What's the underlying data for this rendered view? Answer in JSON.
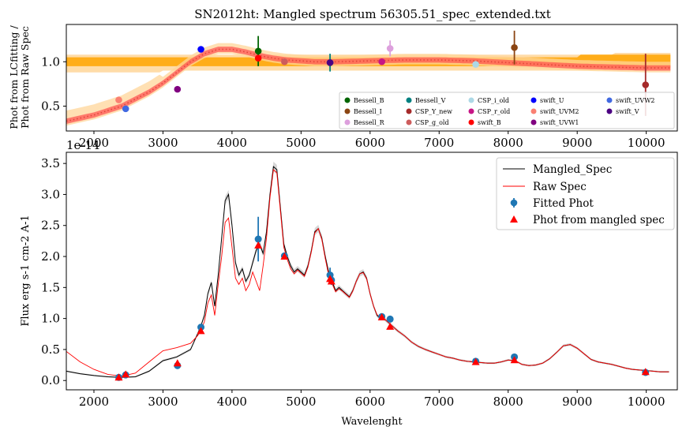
{
  "figure_title": "SN2012ht: Mangled spectrum 56305.51_spec_extended.txt",
  "chart_data": [
    {
      "type": "scatter",
      "panel": "top",
      "ylabel_line1": "Phot from LCfitting /",
      "ylabel_line2": "Phot from Raw Spec",
      "xlim": [
        1600,
        10450
      ],
      "ylim": [
        0.22,
        1.42
      ],
      "xticks": [
        2000,
        3000,
        4000,
        5000,
        6000,
        7000,
        8000,
        9000,
        10000
      ],
      "yticks": [
        0.5,
        1.0
      ],
      "offset_text": "1e-14",
      "grid": false,
      "legend_position": "lower-right",
      "legend_columns": 5,
      "colors": {
        "band_outer": "#ffd699",
        "band_inner": "#ffa500",
        "band_red": "#ff4d4d",
        "ratio_line": "#e0443a"
      },
      "ratio_curve": {
        "x": [
          1600,
          2000,
          2400,
          2800,
          3000,
          3200,
          3400,
          3600,
          3800,
          4000,
          4200,
          4400,
          4600,
          4800,
          5000,
          5200,
          5500,
          6000,
          6500,
          7000,
          7500,
          8000,
          8500,
          9000,
          9500,
          10000,
          10350
        ],
        "y": [
          0.33,
          0.4,
          0.5,
          0.66,
          0.76,
          0.88,
          1.0,
          1.09,
          1.14,
          1.14,
          1.11,
          1.07,
          1.04,
          1.02,
          1.01,
          1.0,
          1.0,
          1.01,
          1.02,
          1.02,
          1.01,
          0.99,
          0.97,
          0.95,
          0.94,
          0.93,
          0.93
        ]
      },
      "points": [
        {
          "name": "Bessell_B",
          "color": "#006400",
          "x": 4380,
          "y": 1.12,
          "err": 0.17
        },
        {
          "name": "Bessell_I",
          "color": "#8b4513",
          "x": 8090,
          "y": 1.16,
          "err": 0.19
        },
        {
          "name": "Bessell_R",
          "color": "#dda0dd",
          "x": 6290,
          "y": 1.15,
          "err": 0.09
        },
        {
          "name": "Bessell_V",
          "color": "#008080",
          "x": 5420,
          "y": 0.99,
          "err": 0.1
        },
        {
          "name": "CSP_Y_new",
          "color": "#a52a2a",
          "x": 9990,
          "y": 0.74,
          "err": 0.35
        },
        {
          "name": "CSP_g_old",
          "color": "#cd5c5c",
          "x": 4760,
          "y": 1.0,
          "err": 0.0
        },
        {
          "name": "CSP_i_old",
          "color": "#add8e6",
          "x": 7530,
          "y": 0.97,
          "err": 0.0
        },
        {
          "name": "CSP_r_old",
          "color": "#c71585",
          "x": 6170,
          "y": 1.0,
          "err": 0.0
        },
        {
          "name": "swift_B",
          "color": "#ff0000",
          "x": 4380,
          "y": 1.04,
          "err": 0.0
        },
        {
          "name": "swift_U",
          "color": "#0000ff",
          "x": 3550,
          "y": 1.14,
          "err": 0.0
        },
        {
          "name": "swift_UVM2",
          "color": "#fa8072",
          "x": 2360,
          "y": 0.57,
          "err": 0.0
        },
        {
          "name": "swift_UVW1",
          "color": "#800080",
          "x": 3210,
          "y": 0.69,
          "err": 0.0
        },
        {
          "name": "swift_UVW2",
          "color": "#4169e1",
          "x": 2460,
          "y": 0.47,
          "err": 0.0
        },
        {
          "name": "swift_V",
          "color": "#4b0082",
          "x": 5420,
          "y": 0.99,
          "err": 0.0
        }
      ]
    },
    {
      "type": "line",
      "panel": "bottom",
      "xlabel": "Wavelenght",
      "ylabel": "Flux erg s-1 cm-2 A-1",
      "xlim": [
        1600,
        10450
      ],
      "ylim": [
        -0.15,
        3.68
      ],
      "xticks": [
        2000,
        3000,
        4000,
        5000,
        6000,
        7000,
        8000,
        9000,
        10000
      ],
      "yticks": [
        0.0,
        0.5,
        1.0,
        1.5,
        2.0,
        2.5,
        3.0,
        3.5
      ],
      "grid": false,
      "legend_position": "top-right",
      "legend": [
        "Mangled_Spec",
        "Raw Spec",
        "Fitted Phot",
        "Phot from mangled spec"
      ],
      "series": [
        {
          "name": "Mangled_Spec",
          "color": "#000000",
          "x": [
            1600,
            1800,
            2000,
            2200,
            2400,
            2600,
            2800,
            3000,
            3200,
            3400,
            3500,
            3550,
            3600,
            3650,
            3700,
            3750,
            3800,
            3850,
            3900,
            3950,
            4000,
            4050,
            4100,
            4150,
            4200,
            4250,
            4300,
            4350,
            4400,
            4450,
            4500,
            4550,
            4600,
            4650,
            4700,
            4750,
            4800,
            4850,
            4900,
            4950,
            5000,
            5050,
            5100,
            5150,
            5200,
            5250,
            5300,
            5350,
            5400,
            5450,
            5500,
            5550,
            5600,
            5650,
            5700,
            5750,
            5800,
            5850,
            5900,
            5950,
            6000,
            6050,
            6100,
            6150,
            6200,
            6250,
            6300,
            6350,
            6400,
            6500,
            6600,
            6700,
            6800,
            6900,
            7000,
            7100,
            7200,
            7300,
            7400,
            7500,
            7600,
            7700,
            7800,
            7900,
            8000,
            8100,
            8200,
            8300,
            8400,
            8500,
            8600,
            8700,
            8800,
            8900,
            9000,
            9100,
            9200,
            9300,
            9400,
            9500,
            9600,
            9700,
            9800,
            9900,
            10000,
            10100,
            10200,
            10330
          ],
          "y": [
            0.15,
            0.11,
            0.08,
            0.06,
            0.05,
            0.06,
            0.15,
            0.32,
            0.38,
            0.5,
            0.75,
            0.88,
            1.05,
            1.4,
            1.58,
            1.2,
            1.7,
            2.3,
            2.9,
            3.0,
            2.5,
            1.9,
            1.7,
            1.8,
            1.6,
            1.7,
            1.9,
            2.1,
            2.2,
            2.05,
            2.4,
            3.0,
            3.45,
            3.4,
            2.8,
            2.2,
            2.0,
            1.85,
            1.75,
            1.8,
            1.75,
            1.7,
            1.85,
            2.1,
            2.4,
            2.45,
            2.3,
            2.0,
            1.75,
            1.6,
            1.45,
            1.5,
            1.45,
            1.4,
            1.35,
            1.45,
            1.6,
            1.72,
            1.75,
            1.65,
            1.4,
            1.2,
            1.05,
            1.0,
            1.0,
            0.95,
            0.9,
            0.85,
            0.8,
            0.72,
            0.62,
            0.55,
            0.5,
            0.46,
            0.42,
            0.38,
            0.36,
            0.33,
            0.31,
            0.3,
            0.29,
            0.28,
            0.28,
            0.3,
            0.33,
            0.32,
            0.26,
            0.24,
            0.25,
            0.28,
            0.35,
            0.45,
            0.56,
            0.58,
            0.52,
            0.43,
            0.34,
            0.3,
            0.28,
            0.26,
            0.23,
            0.2,
            0.18,
            0.17,
            0.16,
            0.15,
            0.14,
            0.14
          ]
        },
        {
          "name": "Raw Spec",
          "color": "#ff0000",
          "x": [
            1600,
            1800,
            2000,
            2200,
            2400,
            2600,
            2800,
            3000,
            3200,
            3400,
            3500,
            3550,
            3600,
            3650,
            3700,
            3750,
            3800,
            3850,
            3900,
            3950,
            4000,
            4050,
            4100,
            4150,
            4200,
            4250,
            4300,
            4350,
            4400,
            4450,
            4500,
            4550,
            4600,
            4650,
            4700,
            4750,
            4800,
            4850,
            4900,
            4950,
            5000,
            5050,
            5100,
            5150,
            5200,
            5250,
            5300,
            5350,
            5400,
            5450,
            5500,
            5550,
            5600,
            5650,
            5700,
            5750,
            5800,
            5850,
            5900,
            5950,
            6000,
            6050,
            6100,
            6150,
            6200,
            6250,
            6300,
            6350,
            6400,
            6500,
            6600,
            6700,
            6800,
            6900,
            7000,
            7100,
            7200,
            7300,
            7400,
            7500,
            7600,
            7700,
            7800,
            7900,
            8000,
            8100,
            8200,
            8300,
            8400,
            8500,
            8600,
            8700,
            8800,
            8900,
            9000,
            9100,
            9200,
            9300,
            9400,
            9500,
            9600,
            9700,
            9800,
            9900,
            10000,
            10100,
            10200,
            10330
          ],
          "y": [
            0.47,
            0.3,
            0.18,
            0.1,
            0.07,
            0.12,
            0.3,
            0.48,
            0.53,
            0.6,
            0.72,
            0.8,
            0.95,
            1.25,
            1.38,
            1.05,
            1.55,
            2.0,
            2.55,
            2.62,
            2.15,
            1.65,
            1.55,
            1.65,
            1.45,
            1.55,
            1.75,
            1.6,
            1.45,
            1.85,
            2.3,
            2.95,
            3.4,
            3.35,
            2.75,
            2.15,
            1.95,
            1.8,
            1.72,
            1.78,
            1.73,
            1.68,
            1.83,
            2.08,
            2.38,
            2.45,
            2.28,
            1.97,
            1.7,
            1.56,
            1.43,
            1.48,
            1.44,
            1.39,
            1.34,
            1.44,
            1.6,
            1.72,
            1.74,
            1.64,
            1.4,
            1.2,
            1.06,
            1.01,
            1.0,
            0.95,
            0.9,
            0.85,
            0.8,
            0.72,
            0.62,
            0.55,
            0.5,
            0.46,
            0.42,
            0.38,
            0.36,
            0.33,
            0.31,
            0.3,
            0.29,
            0.28,
            0.28,
            0.3,
            0.33,
            0.32,
            0.26,
            0.24,
            0.25,
            0.28,
            0.35,
            0.45,
            0.56,
            0.58,
            0.52,
            0.43,
            0.34,
            0.3,
            0.28,
            0.26,
            0.23,
            0.2,
            0.18,
            0.17,
            0.16,
            0.15,
            0.14,
            0.14
          ]
        }
      ],
      "fitted_phot": {
        "name": "Fitted Phot",
        "color": "#1f77b4",
        "x": [
          2360,
          2460,
          3210,
          3550,
          4380,
          4760,
          5420,
          5440,
          6170,
          6290,
          7530,
          8090,
          9990
        ],
        "y": [
          0.05,
          0.09,
          0.24,
          0.86,
          2.28,
          2.01,
          1.7,
          1.62,
          1.03,
          0.99,
          0.31,
          0.38,
          0.13
        ],
        "err": [
          0.0,
          0.0,
          0.0,
          0.0,
          0.36,
          0.0,
          0.12,
          0.08,
          0.0,
          0.0,
          0.0,
          0.0,
          0.0
        ]
      },
      "phot_from_mangled": {
        "name": "Phot from mangled spec",
        "color": "#ff0000",
        "x": [
          2360,
          2460,
          3210,
          3550,
          4380,
          4760,
          5420,
          5440,
          6170,
          6290,
          7530,
          8090,
          9990
        ],
        "y": [
          0.05,
          0.1,
          0.28,
          0.8,
          2.18,
          2.0,
          1.64,
          1.6,
          1.02,
          0.87,
          0.3,
          0.33,
          0.14
        ]
      }
    }
  ]
}
